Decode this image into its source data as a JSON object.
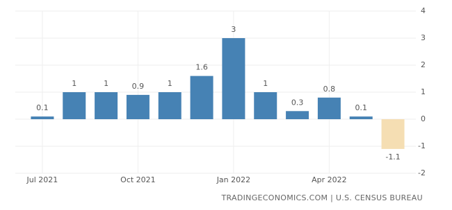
{
  "chart_data": {
    "type": "bar",
    "categories": [
      "Jul 2021",
      null,
      null,
      "Oct 2021",
      null,
      null,
      "Jan 2022",
      null,
      null,
      "Apr 2022",
      null,
      null
    ],
    "values": [
      0.1,
      1,
      1,
      0.9,
      1,
      1.6,
      3,
      1,
      0.3,
      0.8,
      0.1,
      -1.1
    ],
    "color": "#4682b4",
    "negative_color": "#f5deb3",
    "ylim": [
      -2,
      4
    ],
    "yticks": [
      -2,
      -1,
      0,
      1,
      2,
      3,
      4
    ],
    "grid": true,
    "source": "TRADINGECONOMICS.COM | U.S. CENSUS BUREAU"
  }
}
